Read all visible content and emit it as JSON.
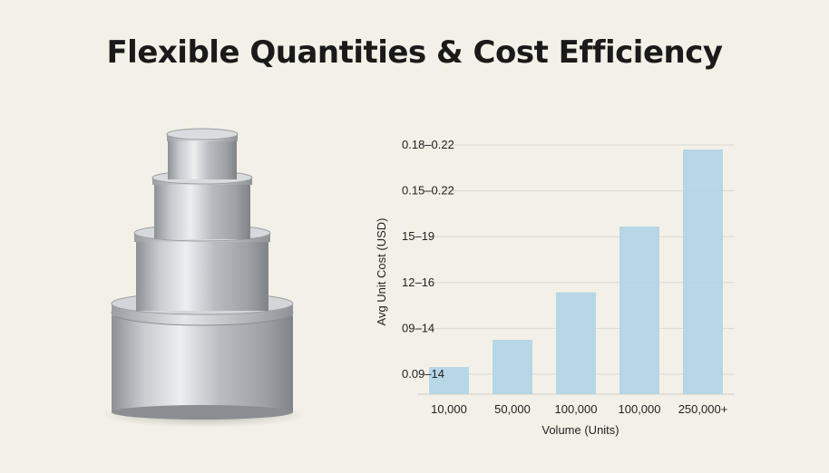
{
  "page": {
    "title": "Flexible Quantities & Cost Efficiency"
  },
  "product": {
    "icon": "stacked-tin-cans-icon"
  },
  "chart_data": {
    "type": "bar",
    "categories": [
      "10,000",
      "50,000",
      "100,000",
      "100,000",
      "250,000+"
    ],
    "y_tick_labels": [
      "0.09–14",
      "09–14",
      "12–16",
      "15–19",
      "0.15–0.22",
      "0.18–0.22"
    ],
    "values": [
      0.6,
      1.2,
      2.25,
      3.7,
      5.4
    ],
    "ylim": [
      0,
      5.5
    ],
    "xlabel": "Volume (Units)",
    "ylabel": "Avg Unit Cost (USD)",
    "grid": true,
    "bar_color": "#b3d4e6"
  }
}
